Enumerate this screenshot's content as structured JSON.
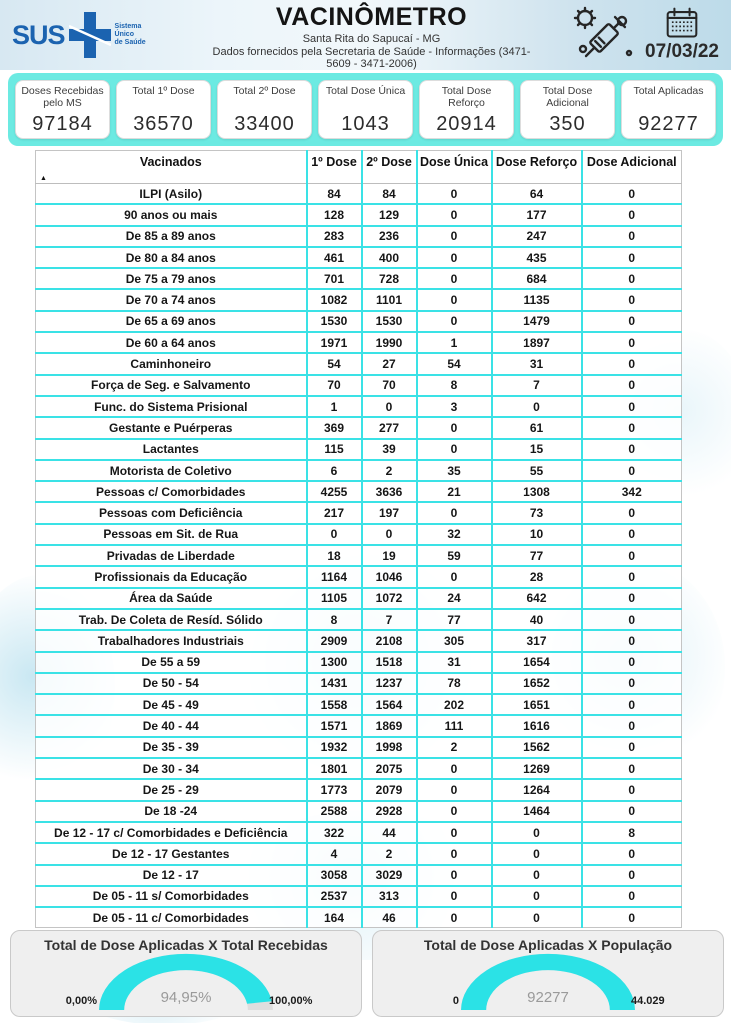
{
  "header": {
    "logo_text": "SUS",
    "logo_tagline": "Sistema\nÚnico\nde Saúde",
    "title": "VACINÔMETRO",
    "subtitle": "Santa Rita do Sapucaí - MG",
    "info": "Dados fornecidos pela Secretaria de Saúde - Informações (3471-5609 - 3471-2006)",
    "date": "07/03/22",
    "icons": [
      "sus-cross-icon",
      "syringe-virus-icon",
      "calendar-icon"
    ]
  },
  "summary_cards": [
    {
      "label": "Doses Recebidas pelo MS",
      "value": "97184"
    },
    {
      "label": "Total 1º Dose",
      "value": "36570"
    },
    {
      "label": "Total 2º Dose",
      "value": "33400"
    },
    {
      "label": "Total Dose Única",
      "value": "1043"
    },
    {
      "label": "Total Dose Reforço",
      "value": "20914"
    },
    {
      "label": "Total Dose Adicional",
      "value": "350"
    },
    {
      "label": "Total Aplicadas",
      "value": "92277"
    }
  ],
  "table": {
    "columns": [
      "Vacinados",
      "1º Dose",
      "2º Dose",
      "Dose Única",
      "Dose Reforço",
      "Dose Adicional"
    ],
    "sort_indicator": "▲",
    "rows": [
      {
        "name": "ILPI (Asilo)",
        "values": [
          "84",
          "84",
          "0",
          "64",
          "0"
        ]
      },
      {
        "name": "90 anos ou mais",
        "values": [
          "128",
          "129",
          "0",
          "177",
          "0"
        ]
      },
      {
        "name": "De 85 a 89 anos",
        "values": [
          "283",
          "236",
          "0",
          "247",
          "0"
        ]
      },
      {
        "name": "De 80 a 84 anos",
        "values": [
          "461",
          "400",
          "0",
          "435",
          "0"
        ]
      },
      {
        "name": "De 75 a 79 anos",
        "values": [
          "701",
          "728",
          "0",
          "684",
          "0"
        ]
      },
      {
        "name": "De 70 a 74 anos",
        "values": [
          "1082",
          "1101",
          "0",
          "1135",
          "0"
        ]
      },
      {
        "name": "De 65 a 69 anos",
        "values": [
          "1530",
          "1530",
          "0",
          "1479",
          "0"
        ]
      },
      {
        "name": "De 60 a 64 anos",
        "values": [
          "1971",
          "1990",
          "1",
          "1897",
          "0"
        ]
      },
      {
        "name": "Caminhoneiro",
        "values": [
          "54",
          "27",
          "54",
          "31",
          "0"
        ]
      },
      {
        "name": "Força de Seg. e Salvamento",
        "values": [
          "70",
          "70",
          "8",
          "7",
          "0"
        ]
      },
      {
        "name": "Func. do Sistema Prisional",
        "values": [
          "1",
          "0",
          "3",
          "0",
          "0"
        ]
      },
      {
        "name": "Gestante e Puérperas",
        "values": [
          "369",
          "277",
          "0",
          "61",
          "0"
        ]
      },
      {
        "name": "Lactantes",
        "values": [
          "115",
          "39",
          "0",
          "15",
          "0"
        ]
      },
      {
        "name": "Motorista de Coletivo",
        "values": [
          "6",
          "2",
          "35",
          "55",
          "0"
        ]
      },
      {
        "name": "Pessoas c/ Comorbidades",
        "values": [
          "4255",
          "3636",
          "21",
          "1308",
          "342"
        ]
      },
      {
        "name": "Pessoas com Deficiência",
        "values": [
          "217",
          "197",
          "0",
          "73",
          "0"
        ]
      },
      {
        "name": "Pessoas em Sit. de Rua",
        "values": [
          "0",
          "0",
          "32",
          "10",
          "0"
        ]
      },
      {
        "name": "Privadas de Liberdade",
        "values": [
          "18",
          "19",
          "59",
          "77",
          "0"
        ]
      },
      {
        "name": "Profissionais da Educação",
        "values": [
          "1164",
          "1046",
          "0",
          "28",
          "0"
        ]
      },
      {
        "name": "Área da Saúde",
        "values": [
          "1105",
          "1072",
          "24",
          "642",
          "0"
        ]
      },
      {
        "name": "Trab. De Coleta de Resíd. Sólido",
        "values": [
          "8",
          "7",
          "77",
          "40",
          "0"
        ]
      },
      {
        "name": "Trabalhadores Industriais",
        "values": [
          "2909",
          "2108",
          "305",
          "317",
          "0"
        ]
      },
      {
        "name": "De 55 a 59",
        "values": [
          "1300",
          "1518",
          "31",
          "1654",
          "0"
        ]
      },
      {
        "name": "De 50 - 54",
        "values": [
          "1431",
          "1237",
          "78",
          "1652",
          "0"
        ]
      },
      {
        "name": "De 45 - 49",
        "values": [
          "1558",
          "1564",
          "202",
          "1651",
          "0"
        ]
      },
      {
        "name": "De 40 - 44",
        "values": [
          "1571",
          "1869",
          "111",
          "1616",
          "0"
        ]
      },
      {
        "name": "De 35 - 39",
        "values": [
          "1932",
          "1998",
          "2",
          "1562",
          "0"
        ]
      },
      {
        "name": "De 30 - 34",
        "values": [
          "1801",
          "2075",
          "0",
          "1269",
          "0"
        ]
      },
      {
        "name": "De 25 - 29",
        "values": [
          "1773",
          "2079",
          "0",
          "1264",
          "0"
        ]
      },
      {
        "name": "De 18 -24",
        "values": [
          "2588",
          "2928",
          "0",
          "1464",
          "0"
        ]
      },
      {
        "name": "De 12 - 17 c/ Comorbidades e Deficiência",
        "values": [
          "322",
          "44",
          "0",
          "0",
          "8"
        ]
      },
      {
        "name": "De 12 - 17 Gestantes",
        "values": [
          "4",
          "2",
          "0",
          "0",
          "0"
        ]
      },
      {
        "name": "De 12 - 17",
        "values": [
          "3058",
          "3029",
          "0",
          "0",
          "0"
        ]
      },
      {
        "name": "De 05 - 11 s/ Comorbidades",
        "values": [
          "2537",
          "313",
          "0",
          "0",
          "0"
        ]
      },
      {
        "name": "De 05 - 11 c/ Comorbidades",
        "values": [
          "164",
          "46",
          "0",
          "0",
          "0"
        ]
      }
    ]
  },
  "gauges": [
    {
      "title": "Total de Dose Aplicadas X Total Recebidas",
      "value": "94,95%",
      "min": "0,00%",
      "max": "100,00%",
      "fraction": 0.9495
    },
    {
      "title": "Total de Dose Aplicadas X População",
      "value": "92277",
      "min": "0",
      "max": "44.029",
      "fraction": 1
    }
  ],
  "colors": {
    "strip_cyan": "#6CEAE2",
    "table_border_cyan": "#3AE2E6",
    "gauge_arc_cyan": "#2BE2E6",
    "sus_blue": "#1B63B0"
  }
}
